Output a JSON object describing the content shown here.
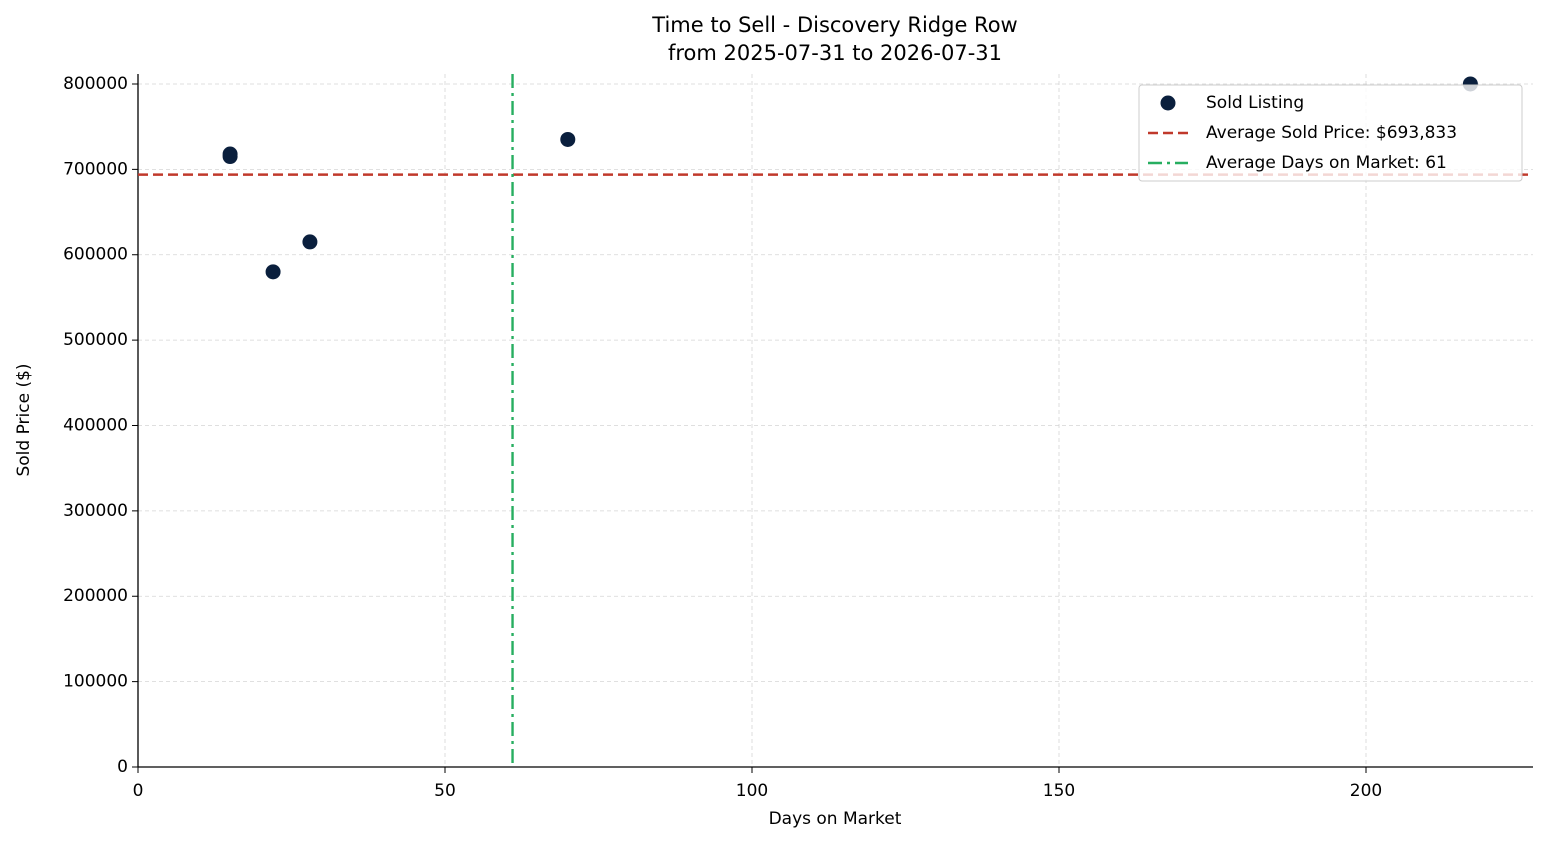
{
  "chart_data": {
    "type": "scatter",
    "title": "Time to Sell - Discovery Ridge Row",
    "subtitle": "from 2025-07-31 to 2026-07-31",
    "x_label": "Days on Market",
    "y_label": "Sold Price ($)",
    "series": [
      {
        "name": "Sold Listing",
        "color": "#0a1f3d",
        "x": [
          15,
          15,
          22,
          28,
          70,
          217
        ],
        "values": [
          718000,
          715000,
          580000,
          615000,
          735000,
          800000
        ]
      }
    ],
    "reference_lines": [
      {
        "name": "Average Sold Price: $693,833",
        "axis": "y",
        "value": 693833,
        "color": "#c0392b",
        "style": "dashed"
      },
      {
        "name": "Average Days on Market: 61",
        "axis": "x",
        "value": 61,
        "color": "#27ae60",
        "style": "dashdot"
      }
    ],
    "xlim": [
      0,
      227.2
    ],
    "ylim": [
      0,
      811700
    ],
    "xticks": [
      0,
      50,
      100,
      150,
      200
    ],
    "yticks": [
      0,
      100000,
      200000,
      300000,
      400000,
      500000,
      600000,
      700000,
      800000
    ],
    "grid": true,
    "legend": "upper right"
  }
}
